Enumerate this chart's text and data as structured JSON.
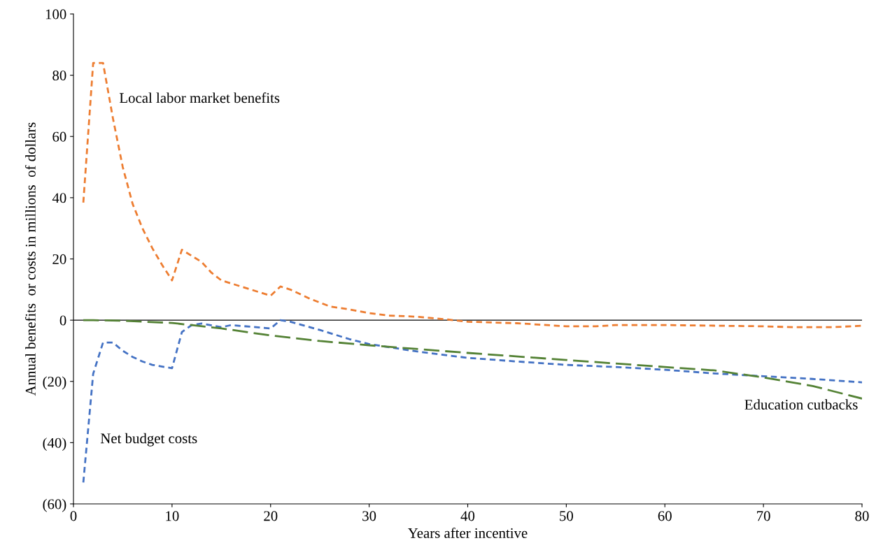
{
  "chart_data": {
    "type": "line",
    "xlabel": "Years after incentive",
    "ylabel": "Annual benefits  or costs in millions  of dollars",
    "xlim": [
      0,
      80
    ],
    "xticks": [
      0,
      10,
      20,
      30,
      40,
      50,
      60,
      70,
      80
    ],
    "ylim": [
      -60,
      100
    ],
    "yticks": [
      {
        "value": -60,
        "label": "(60)"
      },
      {
        "value": -40,
        "label": "(40)"
      },
      {
        "value": -20,
        "label": "(20)"
      },
      0,
      20,
      40,
      60,
      80,
      100
    ],
    "grid": false,
    "legend": false,
    "marker": "none",
    "ref_lines": [
      {
        "axis": "y",
        "value": 0,
        "label": null,
        "color": "#000000",
        "line_style": "solid"
      }
    ],
    "series": [
      {
        "color": "#ed7d31",
        "line_style": "dotted",
        "x": [
          1,
          2,
          3,
          4,
          5,
          6,
          7,
          8,
          9,
          10,
          11,
          12,
          13,
          14,
          15,
          16,
          18,
          20,
          21,
          22,
          24,
          26,
          28,
          30,
          32,
          35,
          38,
          40,
          45,
          50,
          53,
          55,
          60,
          65,
          70,
          73,
          77,
          80
        ],
        "values": [
          38.4,
          84,
          84,
          66,
          50,
          38,
          30,
          23.5,
          18,
          13,
          23,
          21,
          19,
          15.5,
          13,
          12,
          10,
          8,
          11,
          10,
          7,
          4.5,
          3.5,
          2.3,
          1.5,
          1.1,
          0.2,
          -0.5,
          -1,
          -2,
          -2,
          -1.6,
          -1.6,
          -1.8,
          -2,
          -2.3,
          -2.3,
          -1.8
        ]
      },
      {
        "color": "#4472c4",
        "line_style": "dotted",
        "x": [
          1,
          2,
          3,
          4,
          5,
          6,
          7,
          8,
          10,
          11,
          12,
          13,
          15,
          16,
          20,
          21,
          22,
          25,
          28,
          30,
          35,
          40,
          45,
          50,
          55,
          60,
          65,
          70,
          75,
          80
        ],
        "values": [
          -53,
          -17.5,
          -7.3,
          -7.3,
          -10,
          -12,
          -13.5,
          -14.6,
          -15.7,
          -3.9,
          -1.6,
          -1.1,
          -2.3,
          -1.6,
          -2.7,
          0,
          -0.5,
          -3.2,
          -6.2,
          -7.8,
          -10.3,
          -12.3,
          -13.5,
          -14.6,
          -15.3,
          -16.2,
          -17.4,
          -18.3,
          -19.2,
          -20.3
        ]
      },
      {
        "color": "#548235",
        "line_style": "dashed",
        "x": [
          1,
          2,
          5,
          10,
          15,
          20,
          25,
          30,
          40,
          50,
          60,
          65,
          70,
          75,
          80
        ],
        "values": [
          0,
          0,
          -0.2,
          -0.9,
          -2.7,
          -5,
          -6.8,
          -8.2,
          -10.7,
          -13,
          -15.3,
          -16.4,
          -18.7,
          -21.5,
          -25.6
        ]
      }
    ],
    "annotations": [
      "Local labor market benefits",
      "Net budget costs",
      "Education cutbacks"
    ]
  }
}
